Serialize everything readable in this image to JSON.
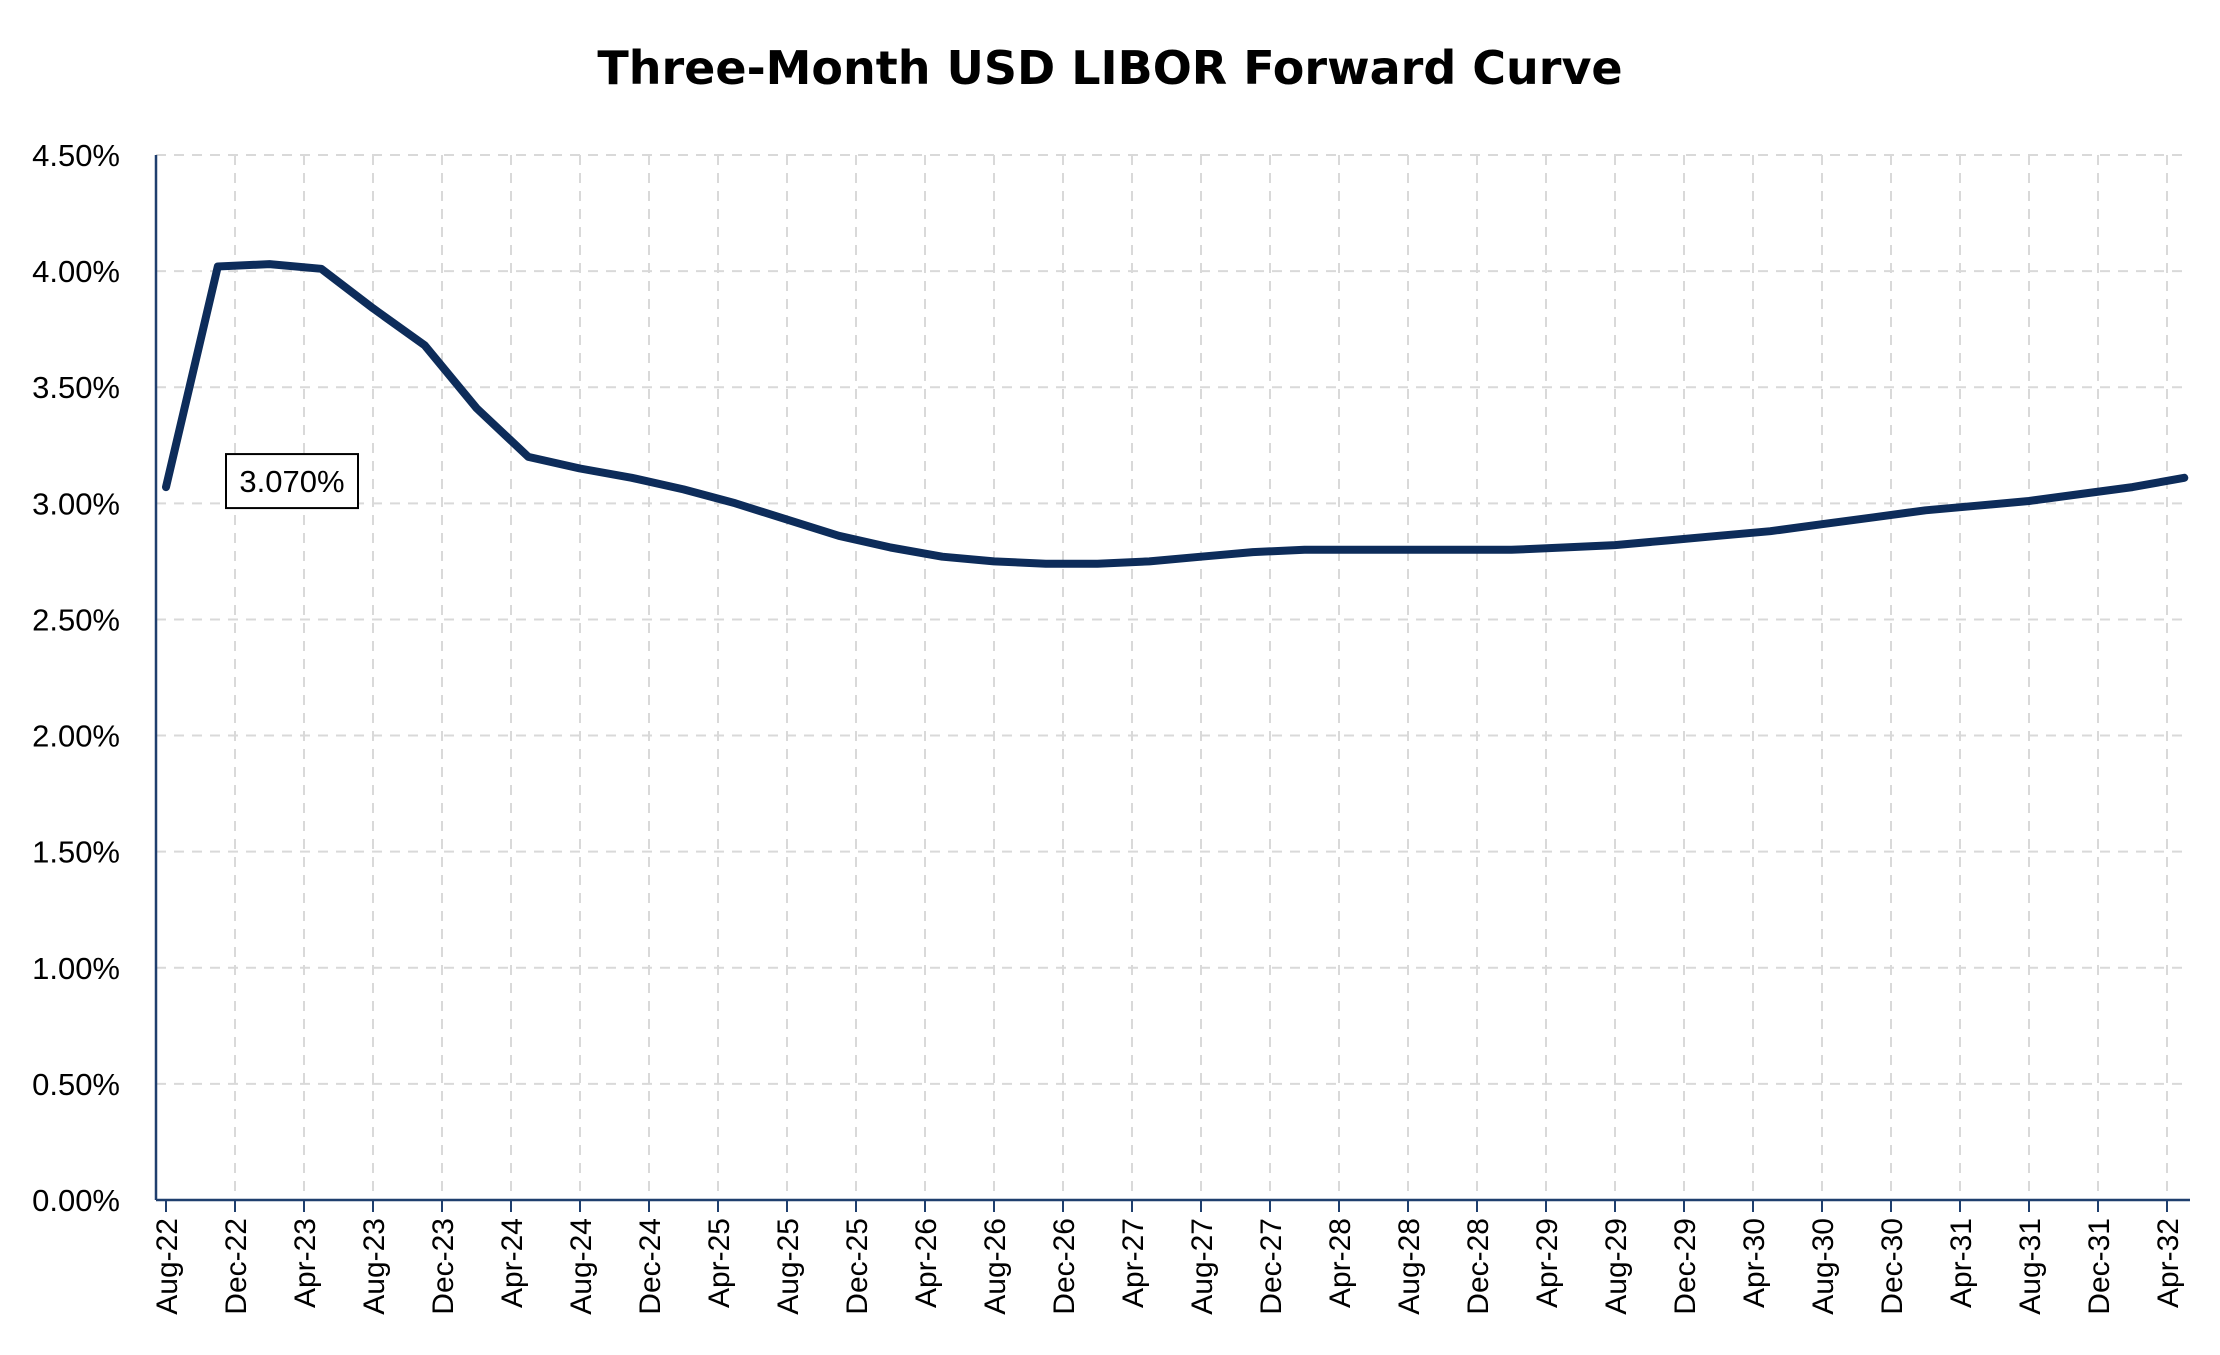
{
  "chart_data": {
    "type": "line",
    "title": "Three-Month USD LIBOR Forward Curve",
    "xlabel": "",
    "ylabel": "",
    "ylim": [
      0,
      4.5
    ],
    "y_ticks": [
      "0.00%",
      "0.50%",
      "1.00%",
      "1.50%",
      "2.00%",
      "2.50%",
      "3.00%",
      "3.50%",
      "4.00%",
      "4.50%"
    ],
    "y_tick_values": [
      0,
      0.5,
      1.0,
      1.5,
      2.0,
      2.5,
      3.0,
      3.5,
      4.0,
      4.5
    ],
    "x_ticks": [
      "Aug-22",
      "Dec-22",
      "Apr-23",
      "Aug-23",
      "Dec-23",
      "Apr-24",
      "Aug-24",
      "Dec-24",
      "Apr-25",
      "Aug-25",
      "Dec-25",
      "Apr-26",
      "Aug-26",
      "Dec-26",
      "Apr-27",
      "Aug-27",
      "Dec-27",
      "Apr-28",
      "Aug-28",
      "Dec-28",
      "Apr-29",
      "Aug-29",
      "Dec-29",
      "Apr-30",
      "Aug-30",
      "Dec-30",
      "Apr-31",
      "Aug-31",
      "Dec-31",
      "Apr-32"
    ],
    "grid": true,
    "legend": "none",
    "series": [
      {
        "color": "#0d2c5a",
        "x": [
          "Aug-22",
          "Nov-22",
          "Feb-23",
          "May-23",
          "Aug-23",
          "Nov-23",
          "Feb-24",
          "May-24",
          "Aug-24",
          "Nov-24",
          "Feb-25",
          "May-25",
          "Aug-25",
          "Nov-25",
          "Feb-26",
          "May-26",
          "Aug-26",
          "Nov-26",
          "Feb-27",
          "May-27",
          "Aug-27",
          "Nov-27",
          "Feb-28",
          "May-28",
          "Aug-28",
          "Nov-28",
          "Feb-29",
          "May-29",
          "Aug-29",
          "Nov-29",
          "Feb-30",
          "May-30",
          "Aug-30",
          "Nov-30",
          "Feb-31",
          "May-31",
          "Aug-31",
          "Nov-31",
          "Feb-32",
          "May-32"
        ],
        "values": [
          3.07,
          4.02,
          4.03,
          4.01,
          3.84,
          3.68,
          3.41,
          3.2,
          3.15,
          3.11,
          3.06,
          3.0,
          2.93,
          2.86,
          2.81,
          2.77,
          2.75,
          2.74,
          2.74,
          2.75,
          2.77,
          2.79,
          2.8,
          2.8,
          2.8,
          2.8,
          2.8,
          2.81,
          2.82,
          2.84,
          2.86,
          2.88,
          2.91,
          2.94,
          2.97,
          2.99,
          3.01,
          3.04,
          3.07,
          3.11
        ]
      }
    ],
    "annotations": [
      {
        "text": "3.070%",
        "x": "Aug-22",
        "y": 3.07
      }
    ]
  }
}
